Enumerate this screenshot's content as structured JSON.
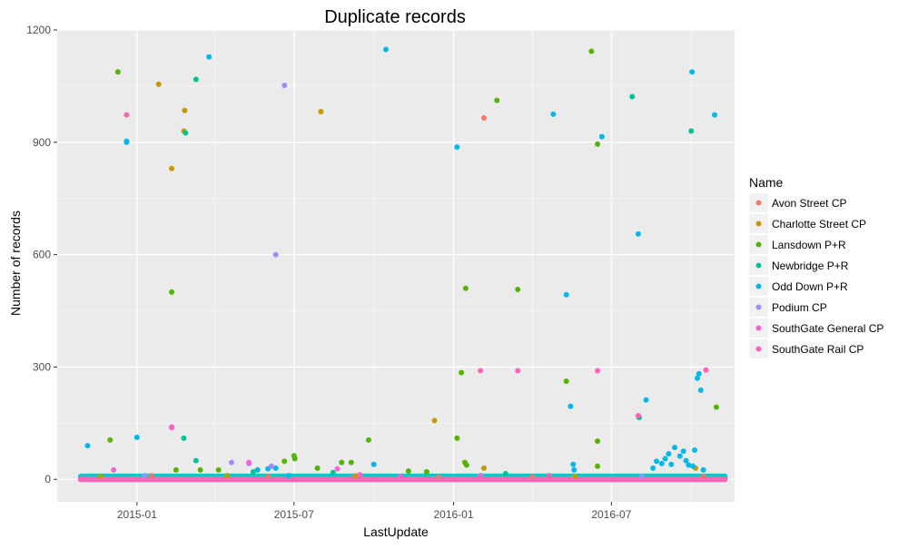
{
  "chart_data": {
    "type": "scatter",
    "title": "Duplicate records",
    "xlabel": "LastUpdate",
    "ylabel": "Number of records",
    "x_is_date": true,
    "xlim": [
      "2014-10-01",
      "2016-11-20"
    ],
    "ylim": [
      -60,
      1200
    ],
    "y_ticks": [
      0,
      300,
      600,
      900,
      1200
    ],
    "y_tick_labels": [
      "0",
      "300",
      "600",
      "900",
      "1200"
    ],
    "x_ticks": [
      "2015-01-01",
      "2015-07-01",
      "2016-01-01",
      "2016-07-01"
    ],
    "x_tick_labels": [
      "2015-01",
      "2015-07",
      "2016-01",
      "2016-07"
    ],
    "grid": true,
    "legend": {
      "title": "Name",
      "position": "right"
    },
    "series": [
      {
        "name": "Avon Street CP",
        "color": "#F8766D",
        "points": [
          [
            "2016-02-05",
            965
          ],
          [
            "2016-08-01",
            170
          ],
          [
            "2015-01-18",
            10
          ],
          [
            "2015-06-01",
            8
          ],
          [
            "2015-12-15",
            6
          ],
          [
            "2016-04-01",
            7
          ],
          [
            "2016-10-15",
            8
          ]
        ]
      },
      {
        "name": "Charlotte Street CP",
        "color": "#C49A00",
        "points": [
          [
            "2015-01-26",
            1055
          ],
          [
            "2015-02-25",
            985
          ],
          [
            "2015-02-24",
            930
          ],
          [
            "2015-02-10",
            830
          ],
          [
            "2015-08-01",
            982
          ],
          [
            "2015-12-10",
            157
          ],
          [
            "2016-02-05",
            30
          ],
          [
            "2016-10-06",
            30
          ],
          [
            "2014-11-20",
            8
          ],
          [
            "2015-04-15",
            10
          ],
          [
            "2015-09-10",
            9
          ],
          [
            "2016-05-20",
            8
          ]
        ]
      },
      {
        "name": "Lansdown P+R",
        "color": "#53B400",
        "points": [
          [
            "2014-12-10",
            1088
          ],
          [
            "2015-02-10",
            500
          ],
          [
            "2015-09-25",
            105
          ],
          [
            "2014-12-01",
            105
          ],
          [
            "2016-01-15",
            510
          ],
          [
            "2016-03-15",
            507
          ],
          [
            "2016-02-20",
            1012
          ],
          [
            "2016-06-08",
            1143
          ],
          [
            "2016-06-15",
            895
          ],
          [
            "2016-06-15",
            102
          ],
          [
            "2016-01-10",
            285
          ],
          [
            "2016-05-10",
            262
          ],
          [
            "2016-10-30",
            193
          ],
          [
            "2016-01-05",
            110
          ],
          [
            "2015-07-01",
            63
          ],
          [
            "2015-07-02",
            55
          ],
          [
            "2015-07-28",
            30
          ],
          [
            "2015-06-20",
            48
          ],
          [
            "2015-08-25",
            45
          ],
          [
            "2015-09-05",
            45
          ],
          [
            "2016-01-14",
            45
          ],
          [
            "2016-01-16",
            38
          ],
          [
            "2015-03-15",
            25
          ],
          [
            "2015-02-15",
            25
          ],
          [
            "2015-04-05",
            25
          ],
          [
            "2016-06-15",
            35
          ],
          [
            "2015-11-10",
            22
          ],
          [
            "2015-12-01",
            20
          ]
        ]
      },
      {
        "name": "Newbridge P+R",
        "color": "#00C094",
        "points": [
          [
            "2015-03-10",
            1068
          ],
          [
            "2015-02-26",
            925
          ],
          [
            "2015-02-24",
            110
          ],
          [
            "2015-03-10",
            50
          ],
          [
            "2016-07-25",
            1022
          ],
          [
            "2016-08-02",
            165
          ],
          [
            "2016-10-01",
            930
          ],
          [
            "2015-05-15",
            20
          ],
          [
            "2015-08-15",
            18
          ],
          [
            "2016-03-01",
            15
          ]
        ]
      },
      {
        "name": "Odd Down P+R",
        "color": "#00B6EB",
        "points": [
          [
            "2015-03-25",
            1128
          ],
          [
            "2014-12-20",
            903
          ],
          [
            "2014-12-20",
            900
          ],
          [
            "2015-01-01",
            112
          ],
          [
            "2014-11-05",
            90
          ],
          [
            "2015-10-15",
            1148
          ],
          [
            "2016-01-05",
            887
          ],
          [
            "2016-04-25",
            975
          ],
          [
            "2016-05-10",
            493
          ],
          [
            "2016-05-15",
            195
          ],
          [
            "2016-06-20",
            915
          ],
          [
            "2016-08-01",
            655
          ],
          [
            "2016-08-10",
            212
          ],
          [
            "2016-10-02",
            1088
          ],
          [
            "2016-10-28",
            973
          ],
          [
            "2016-10-10",
            282
          ],
          [
            "2016-10-08",
            270
          ],
          [
            "2016-10-12",
            238
          ],
          [
            "2016-09-01",
            55
          ],
          [
            "2016-09-05",
            68
          ],
          [
            "2016-09-12",
            85
          ],
          [
            "2016-09-18",
            62
          ],
          [
            "2016-09-22",
            75
          ],
          [
            "2016-09-25",
            50
          ],
          [
            "2016-10-05",
            78
          ],
          [
            "2016-08-22",
            48
          ],
          [
            "2016-08-28",
            42
          ],
          [
            "2016-09-08",
            40
          ],
          [
            "2016-09-28",
            38
          ],
          [
            "2016-10-03",
            35
          ],
          [
            "2016-10-15",
            25
          ],
          [
            "2016-08-18",
            30
          ],
          [
            "2015-05-20",
            25
          ],
          [
            "2015-06-01",
            28
          ],
          [
            "2015-06-10",
            30
          ],
          [
            "2015-10-01",
            40
          ],
          [
            "2016-05-18",
            40
          ],
          [
            "2016-05-19",
            25
          ],
          [
            "2015-06-25",
            10
          ]
        ]
      },
      {
        "name": "Podium CP",
        "color": "#A58AFF",
        "points": [
          [
            "2015-06-20",
            1052
          ],
          [
            "2015-06-10",
            600
          ],
          [
            "2015-04-20",
            45
          ],
          [
            "2015-05-10",
            42
          ],
          [
            "2015-06-05",
            35
          ],
          [
            "2016-08-05",
            8
          ],
          [
            "2015-01-10",
            10
          ]
        ]
      },
      {
        "name": "SouthGate General CP",
        "color": "#FB61D7",
        "points": [
          [
            "2015-02-10",
            140
          ],
          [
            "2014-12-05",
            25
          ],
          [
            "2015-08-20",
            28
          ],
          [
            "2016-02-01",
            10
          ],
          [
            "2015-05-10",
            45
          ],
          [
            "2015-11-01",
            8
          ]
        ]
      },
      {
        "name": "SouthGate Rail CP",
        "color": "#FF63B6",
        "points": [
          [
            "2014-12-20",
            973
          ],
          [
            "2015-02-10",
            138
          ],
          [
            "2016-02-01",
            290
          ],
          [
            "2016-03-15",
            290
          ],
          [
            "2016-06-15",
            290
          ],
          [
            "2016-10-18",
            292
          ],
          [
            "2016-08-01",
            170
          ],
          [
            "2015-09-15",
            12
          ],
          [
            "2016-04-20",
            10
          ]
        ]
      }
    ],
    "baseline_band": {
      "x_start": "2014-10-25",
      "x_end": "2016-11-12",
      "y_max": 8
    }
  }
}
